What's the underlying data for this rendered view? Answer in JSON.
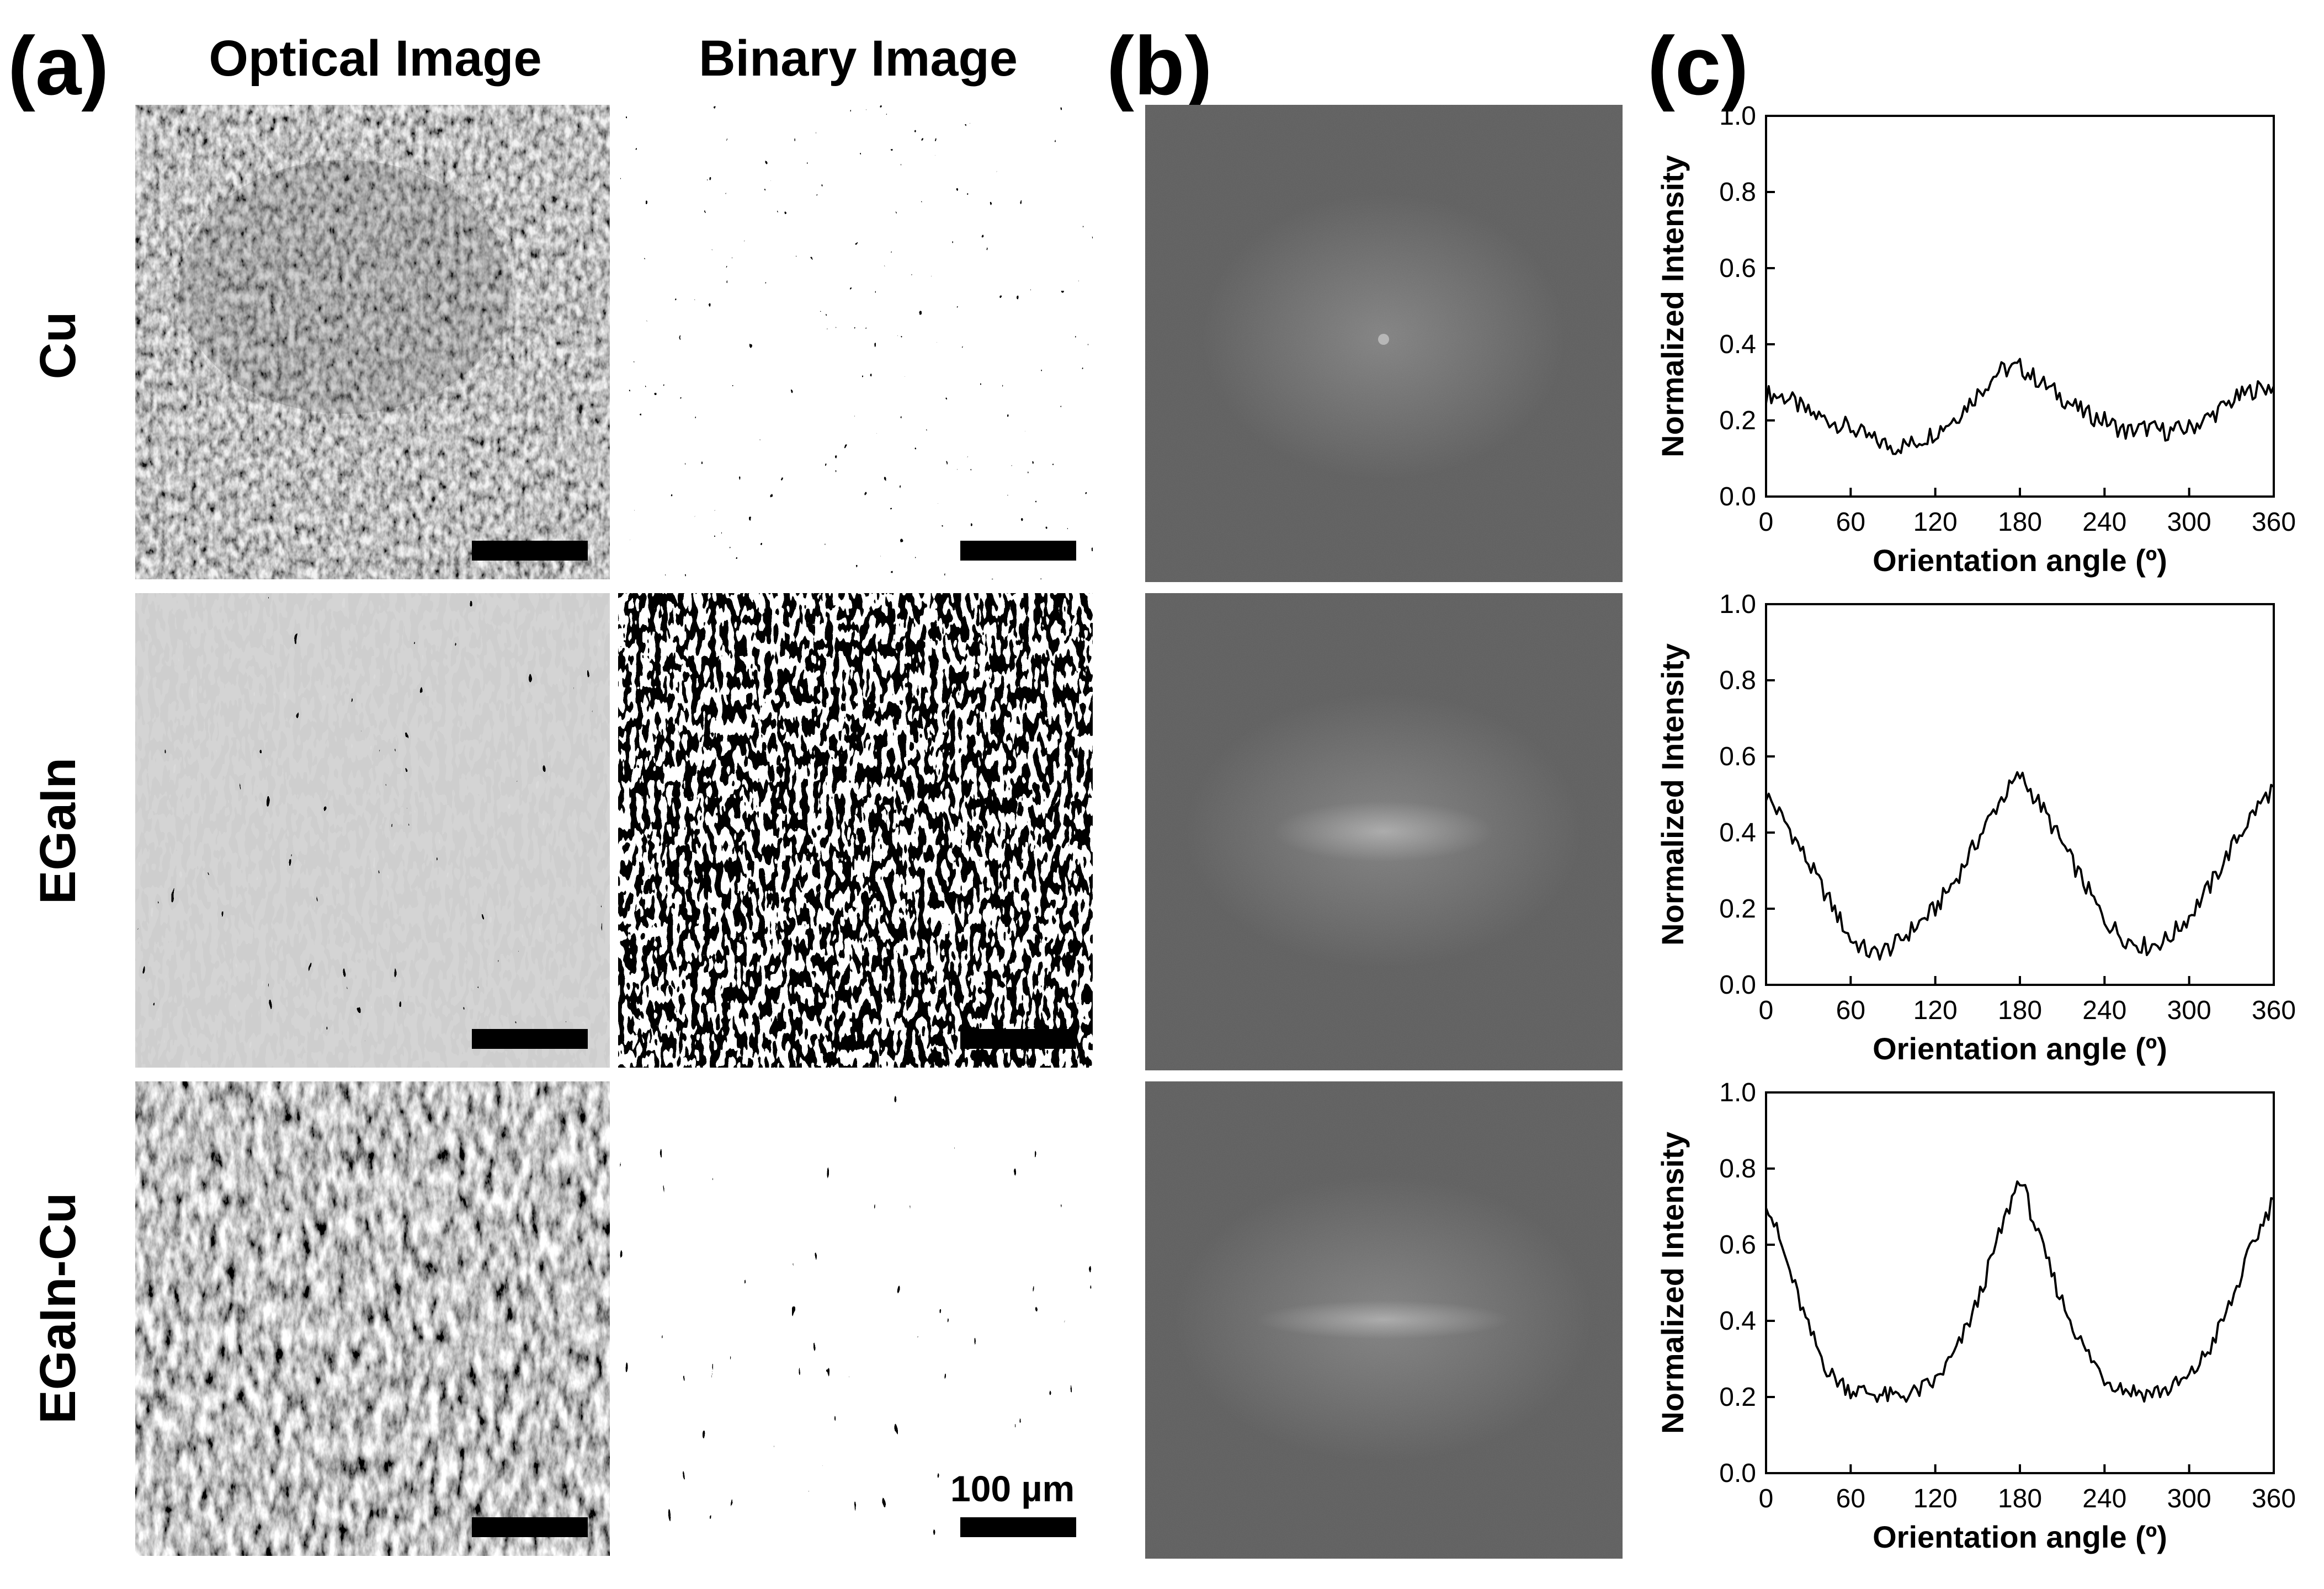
{
  "panel_labels": [
    "(a)",
    "(b)",
    "(c)"
  ],
  "column_headers": [
    "Optical Image",
    "Binary Image"
  ],
  "row_labels": [
    "Cu",
    "EGaIn",
    "EGaIn-Cu"
  ],
  "scale_bar_label": "100 µm",
  "colors": {
    "optical_base": "#8a8a8a",
    "fft_base": "#616161",
    "line": "#000000"
  },
  "chart_data": [
    {
      "type": "line",
      "sample": "Cu",
      "xlabel": "Orientation angle (º)",
      "ylabel": "Normalized Intensity",
      "xlim": [
        0,
        360
      ],
      "ylim": [
        0,
        1.0
      ],
      "xticks": [
        0,
        60,
        120,
        180,
        240,
        300,
        360
      ],
      "yticks": [
        "0.0",
        "0.2",
        "0.4",
        "0.6",
        "0.8",
        "1.0"
      ],
      "x": [
        0,
        15,
        30,
        45,
        60,
        75,
        90,
        105,
        120,
        135,
        150,
        165,
        180,
        195,
        210,
        225,
        240,
        255,
        270,
        285,
        300,
        315,
        330,
        345,
        360
      ],
      "y": [
        0.27,
        0.26,
        0.22,
        0.2,
        0.18,
        0.15,
        0.13,
        0.14,
        0.17,
        0.21,
        0.27,
        0.33,
        0.34,
        0.3,
        0.26,
        0.22,
        0.2,
        0.17,
        0.18,
        0.17,
        0.18,
        0.21,
        0.25,
        0.28,
        0.29
      ]
    },
    {
      "type": "line",
      "sample": "EGaIn",
      "xlabel": "Orientation angle (º)",
      "ylabel": "Normalized Intensity",
      "xlim": [
        0,
        360
      ],
      "ylim": [
        0,
        1.0
      ],
      "xticks": [
        0,
        60,
        120,
        180,
        240,
        300,
        360
      ],
      "yticks": [
        "0.0",
        "0.2",
        "0.4",
        "0.6",
        "0.8",
        "1.0"
      ],
      "x": [
        0,
        15,
        30,
        45,
        60,
        75,
        90,
        105,
        120,
        135,
        150,
        165,
        180,
        195,
        210,
        225,
        240,
        255,
        270,
        285,
        300,
        315,
        330,
        345,
        360
      ],
      "y": [
        0.5,
        0.42,
        0.32,
        0.22,
        0.12,
        0.08,
        0.1,
        0.15,
        0.2,
        0.28,
        0.38,
        0.48,
        0.55,
        0.47,
        0.37,
        0.27,
        0.17,
        0.12,
        0.1,
        0.12,
        0.18,
        0.26,
        0.36,
        0.45,
        0.52
      ]
    },
    {
      "type": "line",
      "sample": "EGaIn-Cu",
      "xlabel": "Orientation angle (º)",
      "ylabel": "Normalized Intensity",
      "xlim": [
        0,
        360
      ],
      "ylim": [
        0,
        1.0
      ],
      "xticks": [
        0,
        60,
        120,
        180,
        240,
        300,
        360
      ],
      "yticks": [
        "0.0",
        "0.2",
        "0.4",
        "0.6",
        "0.8",
        "1.0"
      ],
      "x": [
        0,
        15,
        30,
        45,
        60,
        75,
        90,
        105,
        120,
        135,
        150,
        165,
        180,
        195,
        210,
        225,
        240,
        255,
        270,
        285,
        300,
        315,
        330,
        345,
        360
      ],
      "y": [
        0.72,
        0.55,
        0.38,
        0.26,
        0.22,
        0.21,
        0.2,
        0.21,
        0.24,
        0.32,
        0.45,
        0.62,
        0.78,
        0.6,
        0.45,
        0.33,
        0.25,
        0.22,
        0.21,
        0.22,
        0.25,
        0.33,
        0.45,
        0.6,
        0.72
      ]
    }
  ]
}
